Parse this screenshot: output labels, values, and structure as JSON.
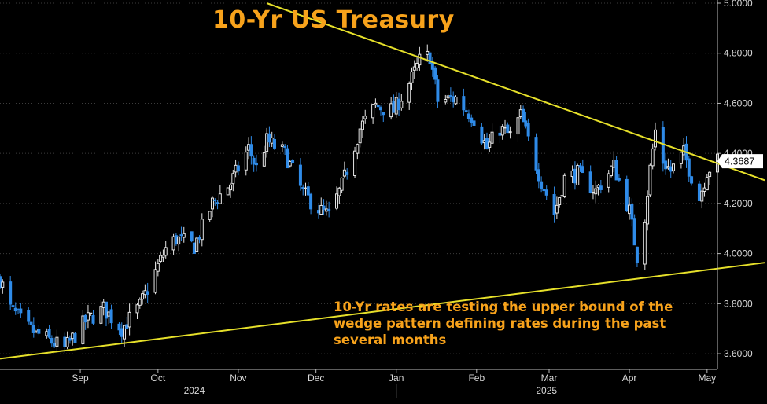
{
  "chart_data": {
    "type": "candlestick",
    "title": "10-Yr US Treasury",
    "annotation": "10-Yr rates are testing the upper bound of the wedge pattern defining rates during the past several months",
    "ylim": [
      3.55,
      5.0
    ],
    "y_ticks": [
      "5.0000",
      "4.8000",
      "4.6000",
      "4.4000",
      "4.2000",
      "4.0000",
      "3.8000",
      "3.6000"
    ],
    "y_tick_values": [
      5.0,
      4.8,
      4.6,
      4.4,
      4.2,
      4.0,
      3.8,
      3.6
    ],
    "x_start": "2024-08-01",
    "x_end": "2025-05-05",
    "month_ticks": [
      {
        "label": "Sep",
        "date": "2024-09-01"
      },
      {
        "label": "Oct",
        "date": "2024-10-01"
      },
      {
        "label": "Nov",
        "date": "2024-11-01"
      },
      {
        "label": "Dec",
        "date": "2024-12-01"
      },
      {
        "label": "Jan",
        "date": "2025-01-01"
      },
      {
        "label": "Feb",
        "date": "2025-02-01"
      },
      {
        "label": "Mar",
        "date": "2025-03-01"
      },
      {
        "label": "Apr",
        "date": "2025-04-01"
      },
      {
        "label": "May",
        "date": "2025-05-01"
      }
    ],
    "year_labels": [
      {
        "label": "2024",
        "date": "2024-10-15"
      },
      {
        "label": "2025",
        "date": "2025-02-28"
      }
    ],
    "year_divider_date": "2025-01-01",
    "last_value": "4.3687",
    "trendlines": [
      {
        "name": "upper-bound",
        "points": [
          [
            "2024-11-12",
            5.0
          ],
          [
            "2025-05-05",
            4.36
          ]
        ]
      },
      {
        "name": "lower-bound",
        "points": [
          [
            "2024-08-01",
            3.58
          ],
          [
            "2025-05-05",
            3.94
          ]
        ]
      }
    ],
    "keypoints": [
      [
        "2024-08-01",
        3.9
      ],
      [
        "2024-08-05",
        3.78
      ],
      [
        "2024-08-12",
        3.7
      ],
      [
        "2024-08-19",
        3.66
      ],
      [
        "2024-08-26",
        3.62
      ],
      [
        "2024-09-03",
        3.73
      ],
      [
        "2024-09-10",
        3.78
      ],
      [
        "2024-09-17",
        3.7
      ],
      [
        "2024-09-24",
        3.79
      ],
      [
        "2024-10-01",
        3.95
      ],
      [
        "2024-10-04",
        4.02
      ],
      [
        "2024-10-08",
        4.06
      ],
      [
        "2024-10-15",
        4.03
      ],
      [
        "2024-10-22",
        4.2
      ],
      [
        "2024-10-29",
        4.28
      ],
      [
        "2024-11-05",
        4.42
      ],
      [
        "2024-11-08",
        4.34
      ],
      [
        "2024-11-12",
        4.45
      ],
      [
        "2024-11-19",
        4.4
      ],
      [
        "2024-11-26",
        4.24
      ],
      [
        "2024-12-03",
        4.17
      ],
      [
        "2024-12-06",
        4.15
      ],
      [
        "2024-12-11",
        4.27
      ],
      [
        "2024-12-18",
        4.5
      ],
      [
        "2024-12-24",
        4.59
      ],
      [
        "2024-12-31",
        4.57
      ],
      [
        "2025-01-07",
        4.7
      ],
      [
        "2025-01-10",
        4.77
      ],
      [
        "2025-01-14",
        4.79
      ],
      [
        "2025-01-17",
        4.61
      ],
      [
        "2025-01-24",
        4.62
      ],
      [
        "2025-01-31",
        4.54
      ],
      [
        "2025-02-05",
        4.42
      ],
      [
        "2025-02-10",
        4.5
      ],
      [
        "2025-02-14",
        4.47
      ],
      [
        "2025-02-18",
        4.55
      ],
      [
        "2025-02-26",
        4.29
      ],
      [
        "2025-03-03",
        4.16
      ],
      [
        "2025-03-07",
        4.3
      ],
      [
        "2025-03-12",
        4.32
      ],
      [
        "2025-03-19",
        4.25
      ],
      [
        "2025-03-26",
        4.35
      ],
      [
        "2025-04-01",
        4.17
      ],
      [
        "2025-04-04",
        3.99
      ],
      [
        "2025-04-07",
        4.15
      ],
      [
        "2025-04-09",
        4.34
      ],
      [
        "2025-04-11",
        4.49
      ],
      [
        "2025-04-14",
        4.37
      ],
      [
        "2025-04-17",
        4.33
      ],
      [
        "2025-04-22",
        4.4
      ],
      [
        "2025-04-28",
        4.22
      ],
      [
        "2025-05-01",
        4.33
      ],
      [
        "2025-05-05",
        4.37
      ]
    ]
  },
  "colors": {
    "background": "#000000",
    "up_candle": "#e6e6e6",
    "down_candle": "#2f8be8",
    "trendline": "#e6e02a",
    "title": "#f7a21b",
    "axis": "#d8d8d8",
    "grid": "#3c3c3c",
    "last_value_box": "#ffffff"
  }
}
